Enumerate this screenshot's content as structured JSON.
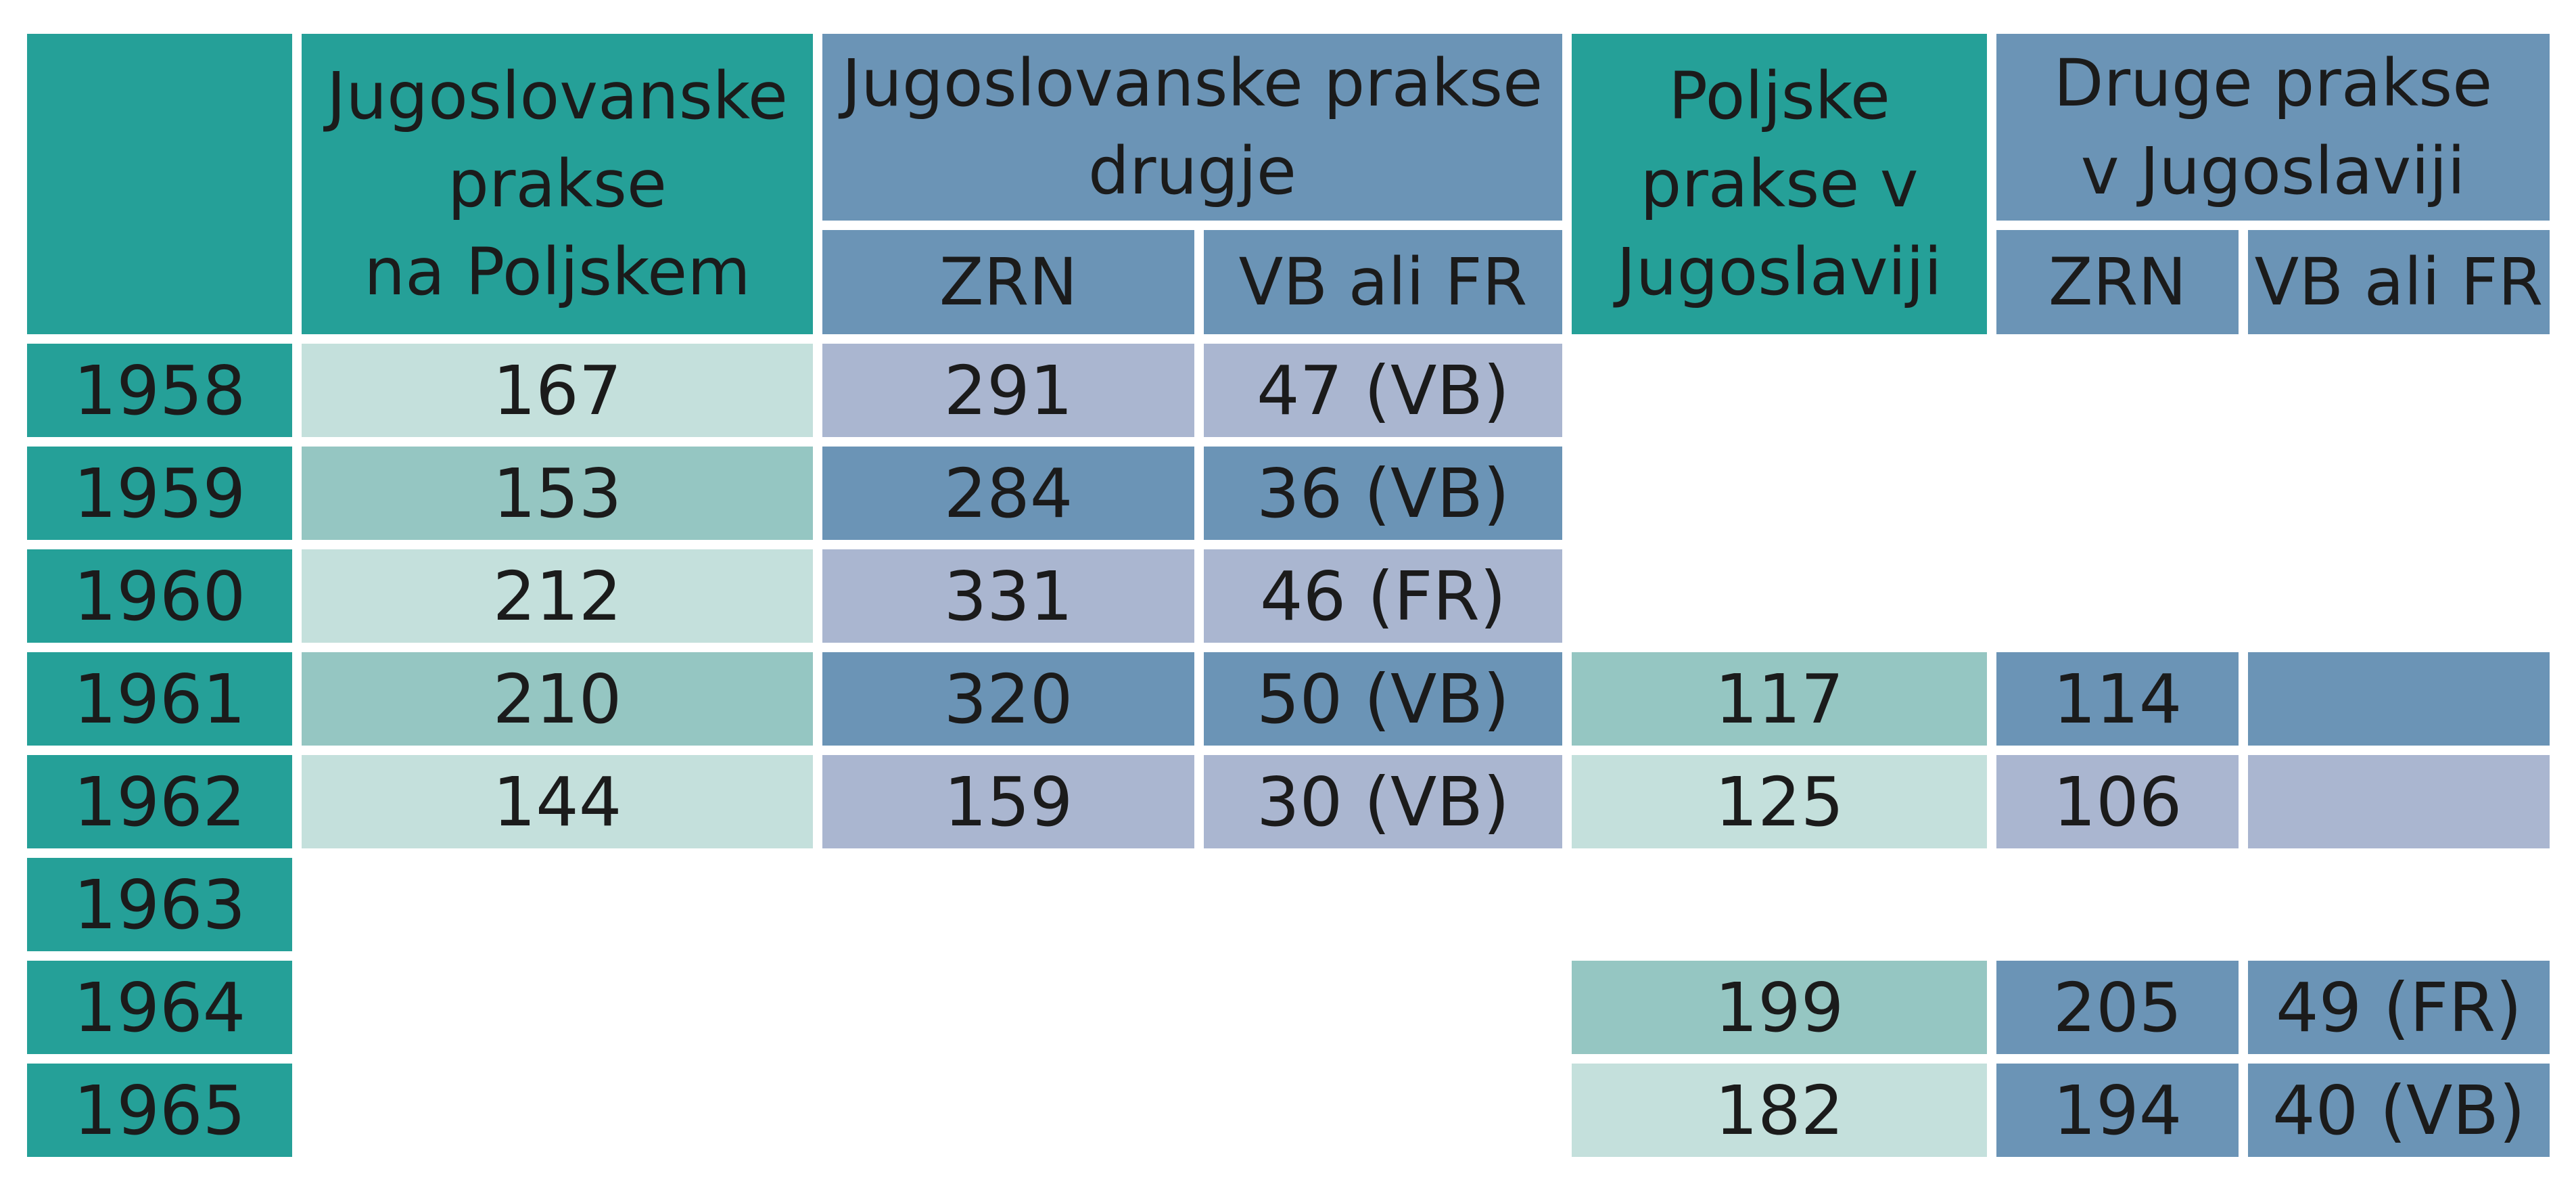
{
  "table": {
    "headers": {
      "yugoslav_in_poland": "Jugoslovanske prakse na Poljskem",
      "yugoslav_in_poland_lines": [
        "Jugoslovanske",
        "prakse",
        "na Poljskem"
      ],
      "yugoslav_elsewhere": "Jugoslovanske prakse drugje",
      "yugoslav_elsewhere_lines": [
        "Jugoslovanske prakse",
        "drugje"
      ],
      "polish_in_yugoslavia": "Poljske prakse v Jugoslaviji",
      "polish_in_yugoslavia_lines": [
        "Poljske",
        "prakse v",
        "Jugoslaviji"
      ],
      "other_in_yugoslavia": "Druge prakse v Jugoslaviji",
      "other_in_yugoslavia_lines": [
        "Druge prakse",
        "v Jugoslaviji"
      ],
      "sub_zrn": "ZRN",
      "sub_vb_fr": "VB ali FR"
    },
    "rows": [
      {
        "year": "1958",
        "yu_pl": "167",
        "yu_zrn": "291",
        "yu_vbfr": "47 (VB)",
        "pl_yu": "",
        "ot_zrn": "",
        "ot_vbfr": ""
      },
      {
        "year": "1959",
        "yu_pl": "153",
        "yu_zrn": "284",
        "yu_vbfr": "36 (VB)",
        "pl_yu": "",
        "ot_zrn": "",
        "ot_vbfr": ""
      },
      {
        "year": "1960",
        "yu_pl": "212",
        "yu_zrn": "331",
        "yu_vbfr": "46 (FR)",
        "pl_yu": "",
        "ot_zrn": "",
        "ot_vbfr": ""
      },
      {
        "year": "1961",
        "yu_pl": "210",
        "yu_zrn": "320",
        "yu_vbfr": "50 (VB)",
        "pl_yu": "117",
        "ot_zrn": "114",
        "ot_vbfr": ""
      },
      {
        "year": "1962",
        "yu_pl": "144",
        "yu_zrn": "159",
        "yu_vbfr": "30 (VB)",
        "pl_yu": "125",
        "ot_zrn": "106",
        "ot_vbfr": ""
      },
      {
        "year": "1963",
        "yu_pl": "",
        "yu_zrn": "",
        "yu_vbfr": "",
        "pl_yu": "",
        "ot_zrn": "",
        "ot_vbfr": ""
      },
      {
        "year": "1964",
        "yu_pl": "",
        "yu_zrn": "",
        "yu_vbfr": "",
        "pl_yu": "199",
        "ot_zrn": "205",
        "ot_vbfr": "49 (FR)"
      },
      {
        "year": "1965",
        "yu_pl": "",
        "yu_zrn": "",
        "yu_vbfr": "",
        "pl_yu": "182",
        "ot_zrn": "194",
        "ot_vbfr": "40 (VB)"
      }
    ]
  },
  "colors": {
    "header_teal": "#25a098",
    "header_blue": "#6b94b6",
    "cell_teal_light": "#c4e0dc",
    "cell_teal_mid": "#95c6c2",
    "cell_blue_light": "#aab6d0",
    "cell_blue_mid": "#6b94b6"
  }
}
